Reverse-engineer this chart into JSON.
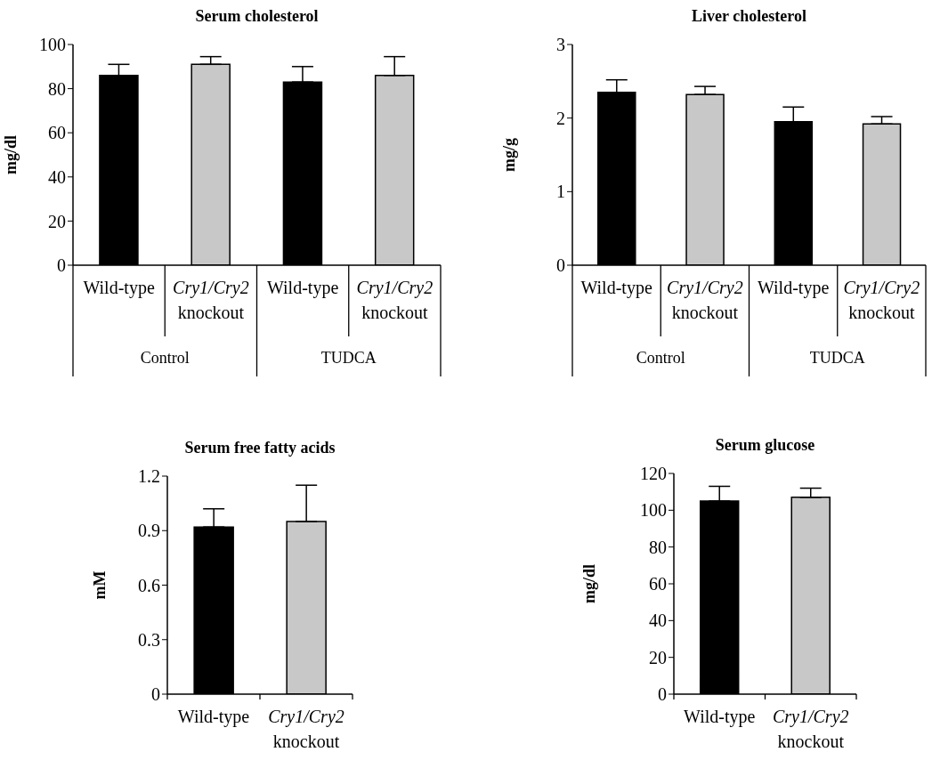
{
  "chart_data": [
    {
      "type": "bar",
      "title": "Serum cholesterol",
      "ylabel": "mg/dl",
      "categories": [
        "Wild-type",
        "Cry1/Cry2\nknockout",
        "Wild-type",
        "Cry1/Cry2\nknockout"
      ],
      "values": [
        86,
        91,
        83,
        86
      ],
      "colors": [
        "#000000",
        "#c8c8c8",
        "#000000",
        "#c8c8c8"
      ],
      "errors": [
        [
          86,
          91
        ],
        [
          91,
          94.5
        ],
        [
          83,
          90
        ],
        [
          86,
          94.5
        ]
      ],
      "ylim": [
        0,
        100
      ],
      "yticks": [
        0,
        20,
        40,
        60,
        80,
        100
      ],
      "annotations": [
        "Control",
        "TUDCA"
      ]
    },
    {
      "type": "bar",
      "title": "Liver cholesterol",
      "ylabel": "mg/g",
      "categories": [
        "Wild-type",
        "Cry1/Cry2\nknockout",
        "Wild-type",
        "Cry1/Cry2\nknockout"
      ],
      "values": [
        2.35,
        2.32,
        1.95,
        1.92
      ],
      "colors": [
        "#000000",
        "#c8c8c8",
        "#000000",
        "#c8c8c8"
      ],
      "errors": [
        [
          2.35,
          2.52
        ],
        [
          2.32,
          2.43
        ],
        [
          1.95,
          2.15
        ],
        [
          1.92,
          2.02
        ]
      ],
      "ylim": [
        0,
        3
      ],
      "yticks": [
        0,
        1,
        2,
        3
      ],
      "annotations": [
        "Control",
        "TUDCA"
      ]
    },
    {
      "type": "bar",
      "title": "Serum free fatty acids",
      "ylabel": "mM",
      "categories": [
        "Wild-type",
        "Cry1/Cry2\nknockout"
      ],
      "values": [
        0.92,
        0.95
      ],
      "colors": [
        "#000000",
        "#c8c8c8"
      ],
      "errors": [
        [
          0.92,
          1.02
        ],
        [
          0.95,
          1.15
        ]
      ],
      "ylim": [
        0,
        1.2
      ],
      "yticks": [
        0,
        0.3,
        0.6,
        0.9,
        1.2
      ]
    },
    {
      "type": "bar",
      "title": "Serum glucose",
      "ylabel": "mg/dl",
      "categories": [
        "Wild-type",
        "Cry1/Cry2\nknockout"
      ],
      "values": [
        105,
        107
      ],
      "colors": [
        "#000000",
        "#c8c8c8"
      ],
      "errors": [
        [
          105,
          113
        ],
        [
          107,
          112
        ]
      ],
      "ylim": [
        0,
        120
      ],
      "yticks": [
        0,
        20,
        40,
        60,
        80,
        100,
        120
      ]
    }
  ]
}
